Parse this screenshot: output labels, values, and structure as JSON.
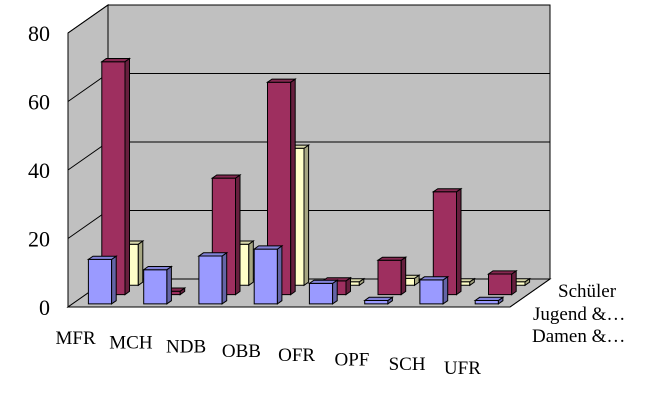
{
  "chart_data": {
    "type": "bar",
    "subtype": "3d-clustered-depth",
    "categories": [
      "MFR",
      "MCH",
      "NDB",
      "OBB",
      "OFR",
      "OPF",
      "SCH",
      "UFR"
    ],
    "y_ticks": [
      "0",
      "20",
      "40",
      "60",
      "80"
    ],
    "ylim": [
      0,
      80
    ],
    "series": [
      {
        "name": "Damen &…",
        "color": "#9a9aff",
        "values": [
          13,
          10,
          14,
          16,
          6,
          1,
          7,
          1
        ]
      },
      {
        "name": "Jugend &…",
        "color": "#9e2f5f",
        "values": [
          68,
          1,
          34,
          62,
          4,
          10,
          30,
          6
        ]
      },
      {
        "name": "Schüler",
        "color": "#ffffc8",
        "values": [
          12,
          0,
          12,
          40,
          1,
          2,
          1,
          1
        ]
      }
    ],
    "grid": true,
    "legend": "depth-axis labels on the right"
  }
}
